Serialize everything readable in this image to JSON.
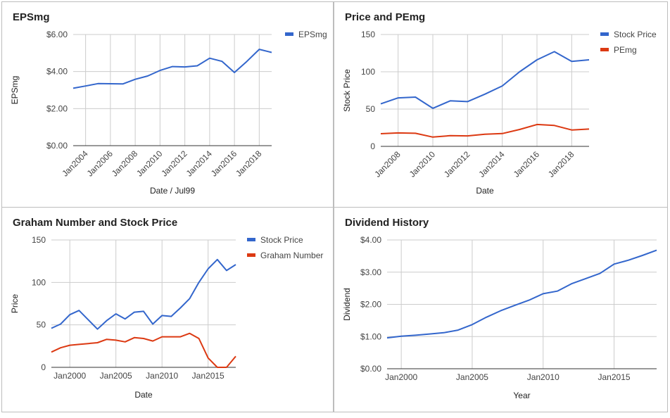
{
  "colors": {
    "blue": "#3366cc",
    "red": "#dc3912",
    "grid": "#cccccc",
    "axis": "#333333",
    "tick": "#444444",
    "label": "#222222"
  },
  "chart_data": [
    {
      "type": "line",
      "title": "EPSmg",
      "xlabel": "Date / Jul99",
      "ylabel": "EPSmg",
      "x_ticks": [
        "Jan2004",
        "Jan2006",
        "Jan2008",
        "Jan2010",
        "Jan2012",
        "Jan2014",
        "Jan2016",
        "Jan2018"
      ],
      "y_ticks": [
        "$0.00",
        "$2.00",
        "$4.00",
        "$6.00"
      ],
      "xlim": [
        2003.0,
        2019.0
      ],
      "ylim": [
        0,
        6
      ],
      "legend_position": "right",
      "grid": true,
      "series": [
        {
          "name": "EPSmg",
          "color": "#3366cc",
          "x": [
            2003.0,
            2004.0,
            2005.0,
            2006.0,
            2007.0,
            2008.0,
            2009.0,
            2010.0,
            2011.0,
            2012.0,
            2013.0,
            2014.0,
            2015.0,
            2016.0,
            2017.0,
            2018.0,
            2019.0
          ],
          "y": [
            3.1,
            3.22,
            3.35,
            3.34,
            3.33,
            3.58,
            3.76,
            4.06,
            4.27,
            4.25,
            4.31,
            4.72,
            4.55,
            3.95,
            4.55,
            5.2,
            5.03
          ]
        }
      ]
    },
    {
      "type": "line",
      "title": "Price and PEmg",
      "xlabel": "Date",
      "ylabel": "Stock Price",
      "x_ticks": [
        "Jan2008",
        "Jan2010",
        "Jan2012",
        "Jan2014",
        "Jan2016",
        "Jan2018"
      ],
      "y_ticks": [
        "0",
        "50",
        "100",
        "150"
      ],
      "xlim": [
        2007.0,
        2019.0
      ],
      "ylim": [
        0,
        150
      ],
      "legend_position": "right",
      "grid": true,
      "series": [
        {
          "name": "Stock Price",
          "color": "#3366cc",
          "x": [
            2007.0,
            2008.0,
            2009.0,
            2010.0,
            2011.0,
            2012.0,
            2013.0,
            2014.0,
            2015.0,
            2016.0,
            2017.0,
            2018.0,
            2019.0
          ],
          "y": [
            57,
            65,
            66,
            51,
            61,
            60,
            70,
            81,
            100,
            116,
            127,
            114,
            116
          ]
        },
        {
          "name": "PEmg",
          "color": "#dc3912",
          "x": [
            2007.0,
            2008.0,
            2009.0,
            2010.0,
            2011.0,
            2012.0,
            2013.0,
            2014.0,
            2015.0,
            2016.0,
            2017.0,
            2018.0,
            2019.0
          ],
          "y": [
            17,
            18,
            17.5,
            12.5,
            14.3,
            14.1,
            16.2,
            17.2,
            22.6,
            29.3,
            28,
            22,
            23.2
          ]
        }
      ]
    },
    {
      "type": "line",
      "title": "Graham Number and Stock Price",
      "xlabel": "Date",
      "ylabel": "Price",
      "x_ticks": [
        "Jan2000",
        "Jan2005",
        "Jan2010",
        "Jan2015"
      ],
      "y_ticks": [
        "0",
        "50",
        "100",
        "150"
      ],
      "xlim": [
        1998.0,
        2018.0
      ],
      "ylim": [
        0,
        150
      ],
      "legend_position": "right",
      "grid": true,
      "series": [
        {
          "name": "Stock Price",
          "color": "#3366cc",
          "x": [
            1998.0,
            1999.0,
            2000.0,
            2001.0,
            2002.0,
            2003.0,
            2004.0,
            2005.0,
            2006.0,
            2007.0,
            2008.0,
            2009.0,
            2010.0,
            2011.0,
            2012.0,
            2013.0,
            2014.0,
            2015.0,
            2016.0,
            2017.0,
            2018.0
          ],
          "y": [
            46,
            51,
            62,
            67,
            56,
            45,
            55,
            63,
            57,
            65,
            66,
            51,
            61,
            60,
            70,
            81,
            100,
            116,
            127,
            114,
            121
          ]
        },
        {
          "name": "Graham Number",
          "color": "#dc3912",
          "x": [
            1998.0,
            1999.0,
            2000.0,
            2001.0,
            2002.0,
            2003.0,
            2004.0,
            2005.0,
            2006.0,
            2007.0,
            2008.0,
            2009.0,
            2010.0,
            2011.0,
            2012.0,
            2013.0,
            2014.0,
            2015.0,
            2016.0,
            2017.0,
            2018.0
          ],
          "y": [
            18,
            23,
            26,
            27,
            28,
            29,
            33,
            32,
            30,
            35,
            34,
            31,
            36,
            36,
            36,
            40,
            34,
            11,
            0,
            0,
            13
          ]
        }
      ]
    },
    {
      "type": "line",
      "title": "Dividend History",
      "xlabel": "Year",
      "ylabel": "Dividend",
      "x_ticks": [
        "Jan2000",
        "Jan2005",
        "Jan2010",
        "Jan2015"
      ],
      "y_ticks": [
        "$0.00",
        "$1.00",
        "$2.00",
        "$3.00",
        "$4.00"
      ],
      "xlim": [
        1999.0,
        2018.0
      ],
      "ylim": [
        0,
        4
      ],
      "grid": true,
      "series": [
        {
          "name": "Dividend",
          "color": "#3366cc",
          "x": [
            1999.0,
            2000.0,
            2001.0,
            2002.0,
            2003.0,
            2004.0,
            2005.0,
            2006.0,
            2007.0,
            2008.0,
            2009.0,
            2010.0,
            2011.0,
            2012.0,
            2013.0,
            2014.0,
            2015.0,
            2016.0,
            2017.0,
            2018.0
          ],
          "y": [
            0.96,
            1.01,
            1.04,
            1.08,
            1.12,
            1.2,
            1.37,
            1.6,
            1.8,
            1.97,
            2.13,
            2.33,
            2.41,
            2.64,
            2.8,
            2.96,
            3.25,
            3.37,
            3.52,
            3.68
          ]
        }
      ]
    }
  ]
}
